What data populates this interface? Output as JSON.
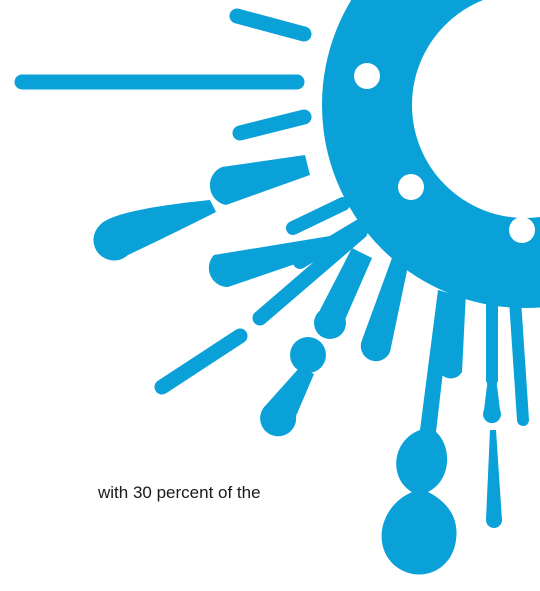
{
  "caption": {
    "text": "with 30 percent of the"
  },
  "graphic": {
    "icon": "sun-splash-icon",
    "colors": {
      "primary": "#0aa1d8",
      "background": "#ffffff"
    }
  }
}
